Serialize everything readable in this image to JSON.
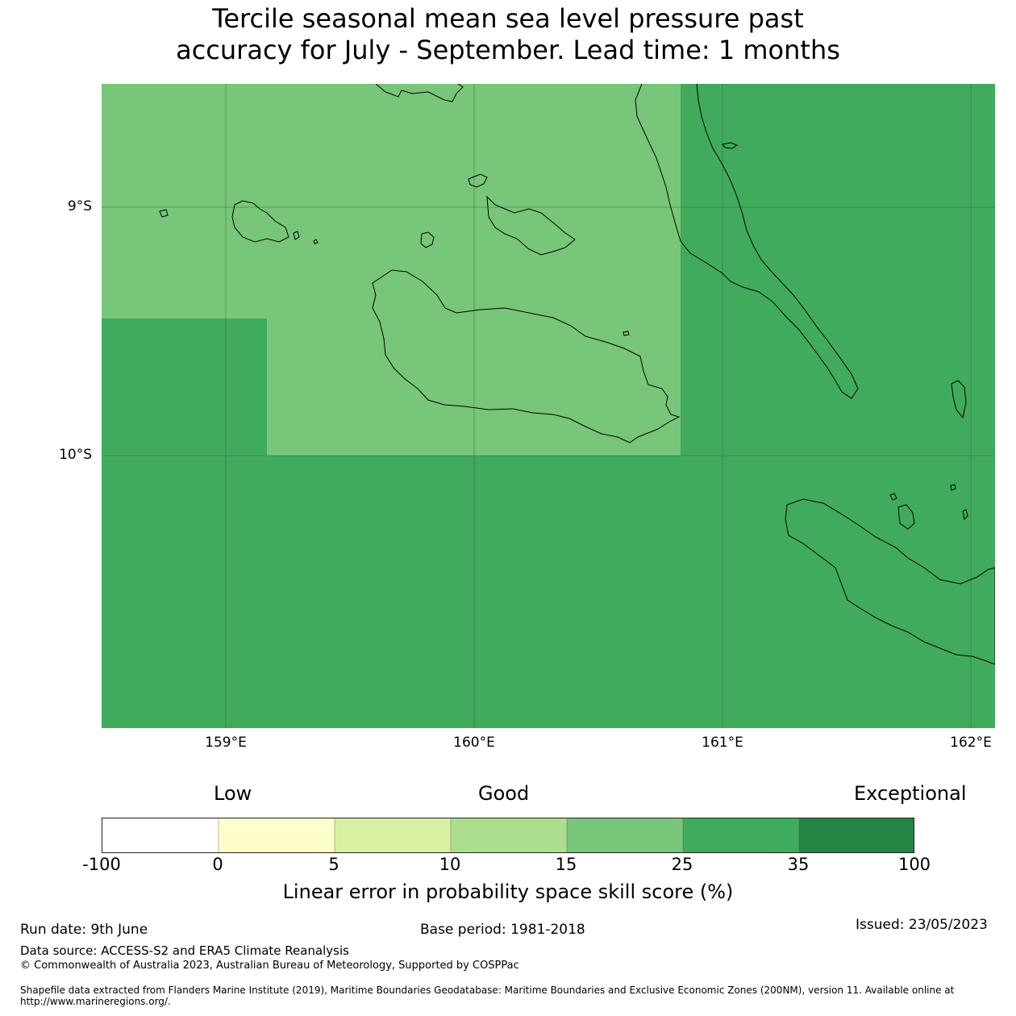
{
  "title_line1": "Tercile seasonal mean sea level pressure past",
  "title_line2": "accuracy for July - September. Lead time: 1 months",
  "map": {
    "latitude_labels": [
      "9°S",
      "10°S"
    ],
    "longitude_labels": [
      "159°E",
      "160°E",
      "161°E",
      "162°E"
    ],
    "skill_zones": [
      {
        "extent": "159.17°E–160.83°E, north of 10°S",
        "category": "15 - 25",
        "color": "#78c679"
      },
      {
        "extent": "west of 159.17°E, 9.45°S–10°S",
        "category": "25 - 35",
        "color": "#41ab5d"
      },
      {
        "extent": "east of 160.83°E and south of 10°S",
        "category": "25 - 35",
        "color": "#41ab5d"
      }
    ]
  },
  "legend": {
    "categories": [
      "Low",
      "Good",
      "Exceptional"
    ],
    "ticks": [
      "-100",
      "0",
      "5",
      "10",
      "15",
      "25",
      "35",
      "100"
    ],
    "colors": [
      "#ffffff",
      "#ffffcc",
      "#d9f0a3",
      "#addd8e",
      "#78c679",
      "#41ab5d",
      "#238443"
    ],
    "label": "Linear error in probability space skill score (%)"
  },
  "footer": {
    "run_date": "Run date: 9th June",
    "base_period": "Base period: 1981-2018",
    "issued": "Issued: 23/05/2023",
    "data_source": "Data source: ACCESS-S2 and ERA5 Climate Reanalysis",
    "copyright": "© Commonwealth of Australia 2023, Australian Bureau of Meteorology, Supported by COSPPac",
    "shapefile": "Shapefile data extracted from Flanders Marine Institute (2019), Maritime Boundaries Geodatabase: Maritime Boundaries and Exclusive Economic Zones (200NM), version 11. Available online at http://www.marineregions.org/."
  }
}
